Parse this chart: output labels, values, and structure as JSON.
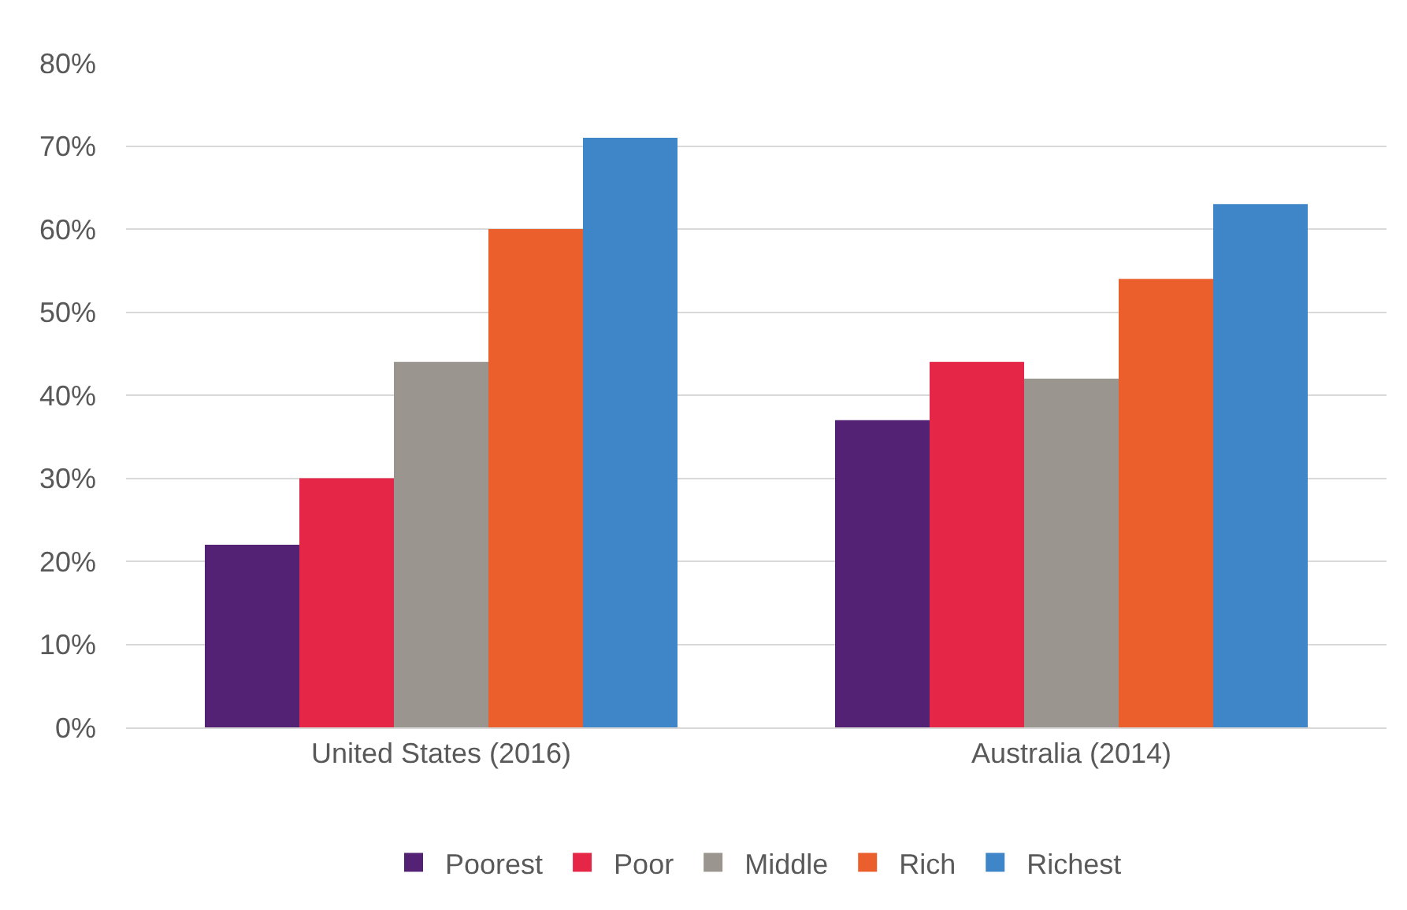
{
  "chart_data": {
    "type": "bar",
    "categories": [
      "United States (2016)",
      "Australia (2014)"
    ],
    "series": [
      {
        "name": "Poorest",
        "color": "#532275",
        "values": [
          22,
          37
        ]
      },
      {
        "name": "Poor",
        "color": "#e52646",
        "values": [
          30,
          44
        ]
      },
      {
        "name": "Middle",
        "color": "#9b958f",
        "values": [
          44,
          42
        ]
      },
      {
        "name": "Rich",
        "color": "#eb5f2c",
        "values": [
          60,
          54
        ]
      },
      {
        "name": "Richest",
        "color": "#3f86c8",
        "values": [
          71,
          63
        ]
      }
    ],
    "ylim": [
      0,
      80
    ],
    "yticks": [
      {
        "value": 0,
        "label": "0%"
      },
      {
        "value": 10,
        "label": "10%"
      },
      {
        "value": 20,
        "label": "20%"
      },
      {
        "value": 30,
        "label": "30%"
      },
      {
        "value": 40,
        "label": "40%"
      },
      {
        "value": 50,
        "label": "50%"
      },
      {
        "value": 60,
        "label": "60%"
      },
      {
        "value": 70,
        "label": "70%"
      },
      {
        "value": 80,
        "label": "80%"
      }
    ],
    "grid": "y",
    "legend": "bottom"
  }
}
